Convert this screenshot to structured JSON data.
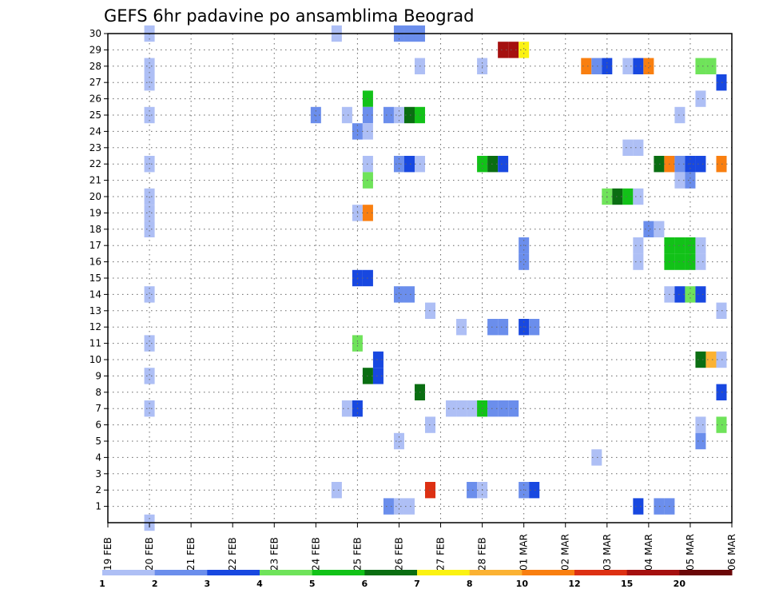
{
  "chart_data": {
    "type": "heatmap",
    "title": "GEFS 6hr padavine po ansamblima Beograd",
    "grid": true,
    "y_members": [
      1,
      2,
      3,
      4,
      5,
      6,
      7,
      8,
      9,
      10,
      11,
      12,
      13,
      14,
      15,
      16,
      17,
      18,
      19,
      20,
      21,
      22,
      23,
      24,
      25,
      26,
      27,
      28,
      29,
      30
    ],
    "x_ticks": [
      "19 FEB",
      "20 FEB",
      "21 FEB",
      "22 FEB",
      "23 FEB",
      "24 FEB",
      "25 FEB",
      "26 FEB",
      "27 FEB",
      "28 FEB",
      "01 MAR",
      "02 MAR",
      "03 MAR",
      "04 MAR",
      "05 MAR",
      "06 MAR"
    ],
    "legend": {
      "labels": [
        "1",
        "2",
        "3",
        "4",
        "5",
        "6",
        "7",
        "8",
        "10",
        "12",
        "15",
        "20"
      ],
      "colors": [
        "#aebff5",
        "#6b8eec",
        "#1848e0",
        "#6fe35a",
        "#12c218",
        "#0a6e12",
        "#fbf212",
        "#fbb233",
        "#f97f10",
        "#dd3013",
        "#a5100f",
        "#6b0708"
      ]
    },
    "cells": [
      {
        "m": 30,
        "d": 1.0,
        "l": 1
      },
      {
        "m": 30,
        "d": 5.5,
        "l": 1
      },
      {
        "m": 30,
        "d": 7.0,
        "l": 2
      },
      {
        "m": 30,
        "d": 7.25,
        "l": 2
      },
      {
        "m": 30,
        "d": 7.5,
        "l": 2
      },
      {
        "m": 29,
        "d": 9.5,
        "l": 11
      },
      {
        "m": 29,
        "d": 9.75,
        "l": 11
      },
      {
        "m": 29,
        "d": 10.0,
        "l": 7
      },
      {
        "m": 28,
        "d": 1.0,
        "l": 1
      },
      {
        "m": 28,
        "d": 7.5,
        "l": 1
      },
      {
        "m": 28,
        "d": 9.0,
        "l": 1
      },
      {
        "m": 28,
        "d": 11.5,
        "l": 9
      },
      {
        "m": 28,
        "d": 11.75,
        "l": 2
      },
      {
        "m": 28,
        "d": 12.0,
        "l": 3
      },
      {
        "m": 28,
        "d": 12.5,
        "l": 1
      },
      {
        "m": 28,
        "d": 12.75,
        "l": 3
      },
      {
        "m": 28,
        "d": 13.0,
        "l": 9
      },
      {
        "m": 28,
        "d": 14.25,
        "l": 4
      },
      {
        "m": 28,
        "d": 14.5,
        "l": 4
      },
      {
        "m": 27,
        "d": 1.0,
        "l": 1
      },
      {
        "m": 27,
        "d": 14.75,
        "l": 3
      },
      {
        "m": 26,
        "d": 6.25,
        "l": 5
      },
      {
        "m": 26,
        "d": 14.25,
        "l": 1
      },
      {
        "m": 25,
        "d": 1.0,
        "l": 1
      },
      {
        "m": 25,
        "d": 5.0,
        "l": 2
      },
      {
        "m": 25,
        "d": 5.75,
        "l": 1
      },
      {
        "m": 25,
        "d": 6.25,
        "l": 2
      },
      {
        "m": 25,
        "d": 6.75,
        "l": 2
      },
      {
        "m": 25,
        "d": 7.0,
        "l": 1
      },
      {
        "m": 25,
        "d": 7.25,
        "l": 6
      },
      {
        "m": 25,
        "d": 7.5,
        "l": 5
      },
      {
        "m": 25,
        "d": 13.75,
        "l": 1
      },
      {
        "m": 24,
        "d": 6.0,
        "l": 2
      },
      {
        "m": 24,
        "d": 6.25,
        "l": 1
      },
      {
        "m": 23,
        "d": 12.5,
        "l": 1
      },
      {
        "m": 23,
        "d": 12.75,
        "l": 1
      },
      {
        "m": 22,
        "d": 1.0,
        "l": 1
      },
      {
        "m": 22,
        "d": 6.25,
        "l": 1
      },
      {
        "m": 22,
        "d": 7.0,
        "l": 2
      },
      {
        "m": 22,
        "d": 7.25,
        "l": 3
      },
      {
        "m": 22,
        "d": 7.5,
        "l": 1
      },
      {
        "m": 22,
        "d": 9.0,
        "l": 5
      },
      {
        "m": 22,
        "d": 9.25,
        "l": 6
      },
      {
        "m": 22,
        "d": 9.5,
        "l": 3
      },
      {
        "m": 22,
        "d": 13.25,
        "l": 6
      },
      {
        "m": 22,
        "d": 13.5,
        "l": 9
      },
      {
        "m": 22,
        "d": 13.75,
        "l": 2
      },
      {
        "m": 22,
        "d": 14.0,
        "l": 3
      },
      {
        "m": 22,
        "d": 14.25,
        "l": 3
      },
      {
        "m": 22,
        "d": 14.75,
        "l": 9
      },
      {
        "m": 21,
        "d": 6.25,
        "l": 4
      },
      {
        "m": 21,
        "d": 13.75,
        "l": 1
      },
      {
        "m": 21,
        "d": 14.0,
        "l": 2
      },
      {
        "m": 20,
        "d": 1.0,
        "l": 1
      },
      {
        "m": 20,
        "d": 12.0,
        "l": 4
      },
      {
        "m": 20,
        "d": 12.25,
        "l": 6
      },
      {
        "m": 20,
        "d": 12.5,
        "l": 5
      },
      {
        "m": 20,
        "d": 12.75,
        "l": 1
      },
      {
        "m": 19,
        "d": 1.0,
        "l": 1
      },
      {
        "m": 19,
        "d": 6.0,
        "l": 1
      },
      {
        "m": 19,
        "d": 6.25,
        "l": 9
      },
      {
        "m": 18,
        "d": 1.0,
        "l": 1
      },
      {
        "m": 18,
        "d": 13.0,
        "l": 2
      },
      {
        "m": 18,
        "d": 13.25,
        "l": 1
      },
      {
        "m": 17,
        "d": 10.0,
        "l": 2
      },
      {
        "m": 17,
        "d": 12.75,
        "l": 1
      },
      {
        "m": 17,
        "d": 13.5,
        "l": 5
      },
      {
        "m": 17,
        "d": 13.75,
        "l": 5
      },
      {
        "m": 17,
        "d": 14.0,
        "l": 5
      },
      {
        "m": 17,
        "d": 14.25,
        "l": 1
      },
      {
        "m": 16,
        "d": 10.0,
        "l": 2
      },
      {
        "m": 16,
        "d": 12.75,
        "l": 1
      },
      {
        "m": 16,
        "d": 13.5,
        "l": 5
      },
      {
        "m": 16,
        "d": 13.75,
        "l": 5
      },
      {
        "m": 16,
        "d": 14.0,
        "l": 5
      },
      {
        "m": 16,
        "d": 14.25,
        "l": 1
      },
      {
        "m": 15,
        "d": 6.0,
        "l": 3
      },
      {
        "m": 15,
        "d": 6.25,
        "l": 3
      },
      {
        "m": 14,
        "d": 1.0,
        "l": 1
      },
      {
        "m": 14,
        "d": 7.0,
        "l": 2
      },
      {
        "m": 14,
        "d": 7.25,
        "l": 2
      },
      {
        "m": 14,
        "d": 13.5,
        "l": 1
      },
      {
        "m": 14,
        "d": 13.75,
        "l": 3
      },
      {
        "m": 14,
        "d": 14.0,
        "l": 4
      },
      {
        "m": 14,
        "d": 14.25,
        "l": 3
      },
      {
        "m": 13,
        "d": 7.75,
        "l": 1
      },
      {
        "m": 13,
        "d": 14.75,
        "l": 1
      },
      {
        "m": 12,
        "d": 8.5,
        "l": 1
      },
      {
        "m": 12,
        "d": 9.25,
        "l": 2
      },
      {
        "m": 12,
        "d": 9.5,
        "l": 2
      },
      {
        "m": 12,
        "d": 10.0,
        "l": 3
      },
      {
        "m": 12,
        "d": 10.25,
        "l": 2
      },
      {
        "m": 11,
        "d": 1.0,
        "l": 1
      },
      {
        "m": 11,
        "d": 6.0,
        "l": 4
      },
      {
        "m": 10,
        "d": 6.5,
        "l": 3
      },
      {
        "m": 10,
        "d": 14.25,
        "l": 6
      },
      {
        "m": 10,
        "d": 14.5,
        "l": 8
      },
      {
        "m": 10,
        "d": 14.75,
        "l": 1
      },
      {
        "m": 9,
        "d": 1.0,
        "l": 1
      },
      {
        "m": 9,
        "d": 6.25,
        "l": 6
      },
      {
        "m": 9,
        "d": 6.5,
        "l": 3
      },
      {
        "m": 8,
        "d": 7.5,
        "l": 6
      },
      {
        "m": 8,
        "d": 14.75,
        "l": 3
      },
      {
        "m": 7,
        "d": 1.0,
        "l": 1
      },
      {
        "m": 7,
        "d": 5.75,
        "l": 1
      },
      {
        "m": 7,
        "d": 6.0,
        "l": 3
      },
      {
        "m": 7,
        "d": 8.25,
        "l": 1
      },
      {
        "m": 7,
        "d": 8.5,
        "l": 1
      },
      {
        "m": 7,
        "d": 8.75,
        "l": 1
      },
      {
        "m": 7,
        "d": 9.0,
        "l": 5
      },
      {
        "m": 7,
        "d": 9.25,
        "l": 2
      },
      {
        "m": 7,
        "d": 9.5,
        "l": 2
      },
      {
        "m": 7,
        "d": 9.75,
        "l": 2
      },
      {
        "m": 6,
        "d": 7.75,
        "l": 1
      },
      {
        "m": 6,
        "d": 14.25,
        "l": 1
      },
      {
        "m": 6,
        "d": 14.75,
        "l": 4
      },
      {
        "m": 5,
        "d": 7.0,
        "l": 1
      },
      {
        "m": 5,
        "d": 14.25,
        "l": 2
      },
      {
        "m": 4,
        "d": 11.75,
        "l": 1
      },
      {
        "m": 2,
        "d": 5.5,
        "l": 1
      },
      {
        "m": 2,
        "d": 7.75,
        "l": 10
      },
      {
        "m": 2,
        "d": 8.75,
        "l": 2
      },
      {
        "m": 2,
        "d": 9.0,
        "l": 1
      },
      {
        "m": 2,
        "d": 10.0,
        "l": 2
      },
      {
        "m": 2,
        "d": 10.25,
        "l": 3
      },
      {
        "m": 1,
        "d": 6.75,
        "l": 2
      },
      {
        "m": 1,
        "d": 7.0,
        "l": 1
      },
      {
        "m": 1,
        "d": 7.25,
        "l": 1
      },
      {
        "m": 1,
        "d": 12.75,
        "l": 3
      },
      {
        "m": 1,
        "d": 13.25,
        "l": 2
      },
      {
        "m": 1,
        "d": 13.5,
        "l": 2
      },
      {
        "m": 0,
        "d": 1.0,
        "l": 1
      }
    ]
  }
}
